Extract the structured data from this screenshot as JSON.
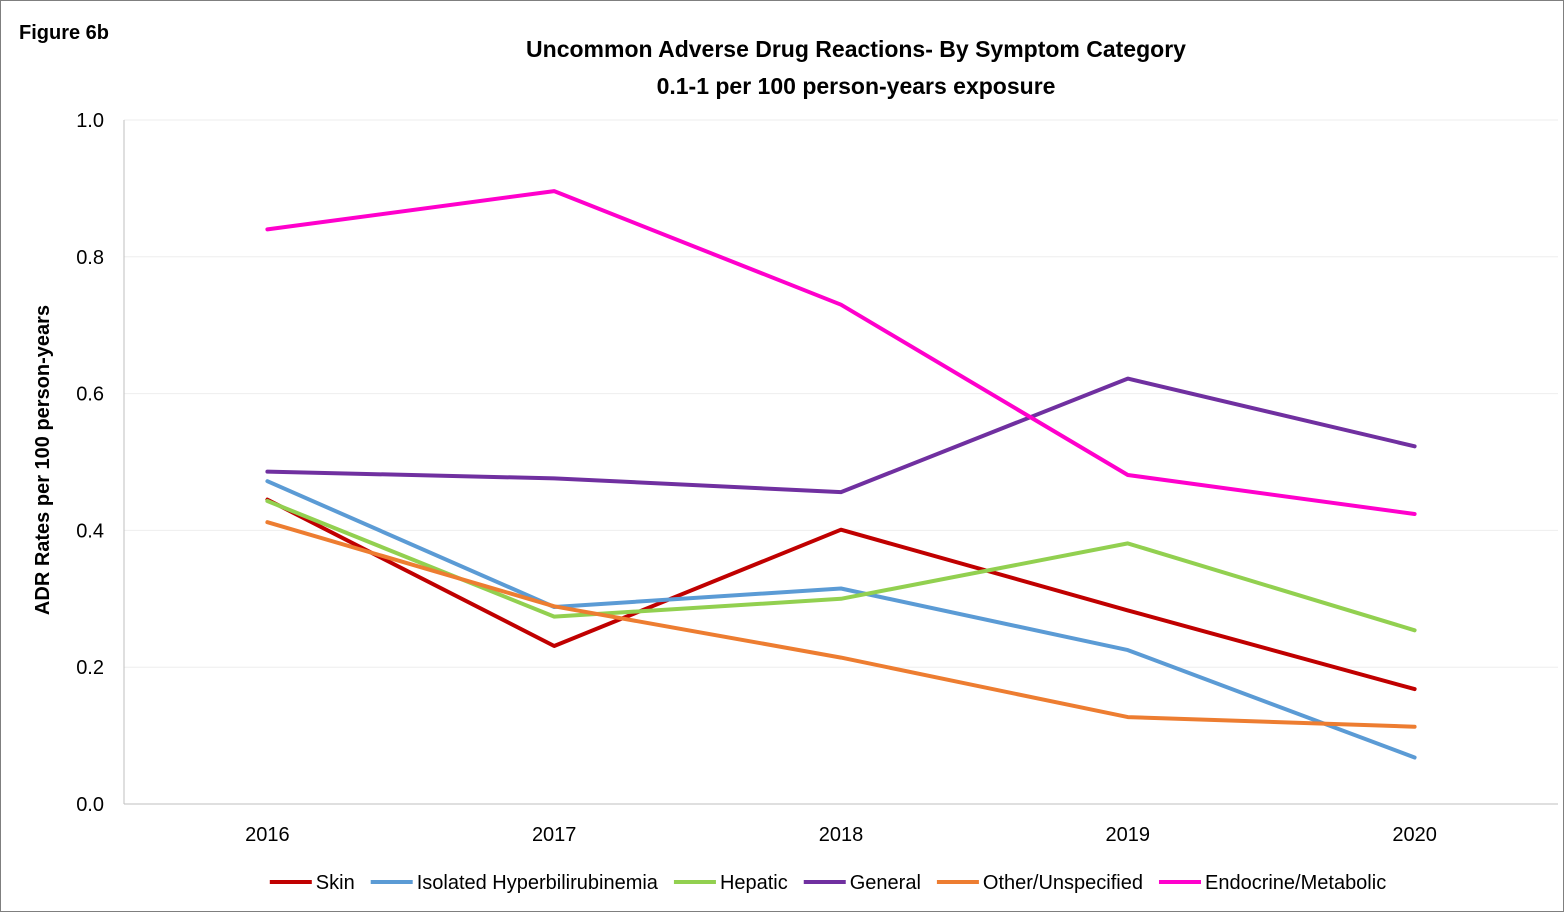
{
  "figure_label": "Figure 6b",
  "chart_data": {
    "type": "line",
    "title": "Uncommon Adverse Drug Reactions- By Symptom Category",
    "subtitle": "0.1-1 per 100 person-years exposure",
    "xlabel": "",
    "ylabel": "ADR Rates per 100 person-years",
    "ylim": [
      0,
      1.0
    ],
    "ytick_labels": [
      "0.0",
      "0.2",
      "0.4",
      "0.6",
      "0.8",
      "1.0"
    ],
    "categories": [
      "2016",
      "2017",
      "2018",
      "2019",
      "2020"
    ],
    "grid": "horizontal",
    "legend_position": "bottom",
    "series": [
      {
        "name": "Skin",
        "color": "#c00000",
        "values": [
          0.445,
          0.231,
          0.401,
          0.283,
          0.168
        ]
      },
      {
        "name": "Isolated Hyperbilirubinemia",
        "color": "#5b9bd5",
        "values": [
          0.472,
          0.288,
          0.315,
          0.225,
          0.068
        ]
      },
      {
        "name": "Hepatic",
        "color": "#92d050",
        "values": [
          0.443,
          0.274,
          0.3,
          0.381,
          0.254
        ]
      },
      {
        "name": "General",
        "color": "#7030a0",
        "values": [
          0.486,
          0.476,
          0.456,
          0.622,
          0.523
        ]
      },
      {
        "name": "Other/Unspecified",
        "color": "#ed7d31",
        "values": [
          0.412,
          0.289,
          0.214,
          0.127,
          0.113
        ]
      },
      {
        "name": "Endocrine/Metabolic",
        "color": "#ff00cc",
        "values": [
          0.84,
          0.896,
          0.73,
          0.481,
          0.424
        ]
      }
    ]
  }
}
